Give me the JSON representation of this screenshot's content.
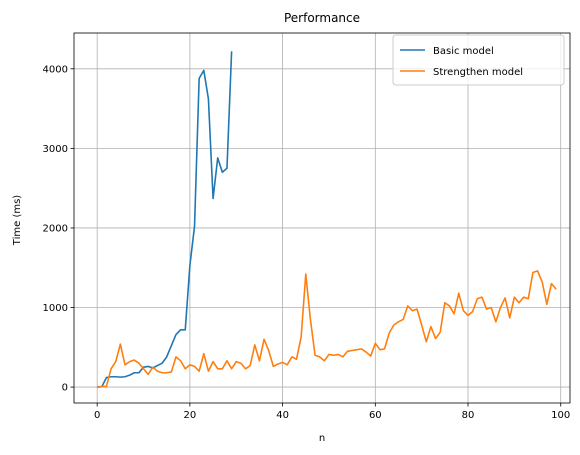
{
  "chart_data": {
    "type": "line",
    "title": "Performance",
    "xlabel": "n",
    "ylabel": "Time (ms)",
    "xlim": [
      -5,
      102
    ],
    "ylim": [
      -200,
      4450
    ],
    "xticks": [
      0,
      20,
      40,
      60,
      80,
      100
    ],
    "yticks": [
      0,
      1000,
      2000,
      3000,
      4000
    ],
    "grid": true,
    "legend_position": "top-right",
    "series": [
      {
        "name": "Basic model",
        "color": "#1f77b4",
        "x": [
          0,
          1,
          2,
          3,
          4,
          5,
          6,
          7,
          8,
          9,
          10,
          11,
          12,
          13,
          14,
          15,
          16,
          17,
          18,
          19,
          20,
          21,
          22,
          23,
          24,
          25,
          26,
          27,
          28,
          29
        ],
        "y": [
          0,
          5,
          120,
          130,
          130,
          125,
          130,
          150,
          180,
          180,
          250,
          260,
          240,
          270,
          300,
          380,
          520,
          660,
          720,
          720,
          1530,
          2020,
          3880,
          3980,
          3620,
          2370,
          2880,
          2700,
          2750,
          4220
        ]
      },
      {
        "name": "Strengthen model",
        "color": "#ff7f0e",
        "x": [
          0,
          1,
          2,
          3,
          4,
          5,
          6,
          7,
          8,
          9,
          10,
          11,
          12,
          13,
          14,
          15,
          16,
          17,
          18,
          19,
          20,
          21,
          22,
          23,
          24,
          25,
          26,
          27,
          28,
          29,
          30,
          31,
          32,
          33,
          34,
          35,
          36,
          37,
          38,
          39,
          40,
          41,
          42,
          43,
          44,
          45,
          46,
          47,
          48,
          49,
          50,
          51,
          52,
          53,
          54,
          55,
          56,
          57,
          58,
          59,
          60,
          61,
          62,
          63,
          64,
          65,
          66,
          67,
          68,
          69,
          70,
          71,
          72,
          73,
          74,
          75,
          76,
          77,
          78,
          79,
          80,
          81,
          82,
          83,
          84,
          85,
          86,
          87,
          88,
          89,
          90,
          91,
          92,
          93,
          94,
          95,
          96,
          97,
          98,
          99
        ],
        "y": [
          0,
          5,
          10,
          230,
          320,
          540,
          280,
          320,
          340,
          300,
          230,
          160,
          250,
          200,
          180,
          180,
          190,
          380,
          330,
          230,
          280,
          260,
          200,
          420,
          200,
          320,
          230,
          230,
          330,
          230,
          320,
          300,
          230,
          270,
          530,
          330,
          600,
          460,
          260,
          290,
          310,
          280,
          380,
          350,
          630,
          1420,
          850,
          400,
          380,
          330,
          410,
          400,
          410,
          380,
          450,
          460,
          470,
          480,
          440,
          390,
          550,
          470,
          480,
          680,
          780,
          820,
          850,
          1020,
          960,
          980,
          780,
          570,
          760,
          610,
          690,
          1060,
          1020,
          920,
          1180,
          960,
          900,
          950,
          1110,
          1130,
          980,
          1000,
          820,
          1000,
          1120,
          870,
          1130,
          1060,
          1130,
          1110,
          1440,
          1460,
          1320,
          1040,
          1300,
          1230
        ]
      }
    ]
  }
}
